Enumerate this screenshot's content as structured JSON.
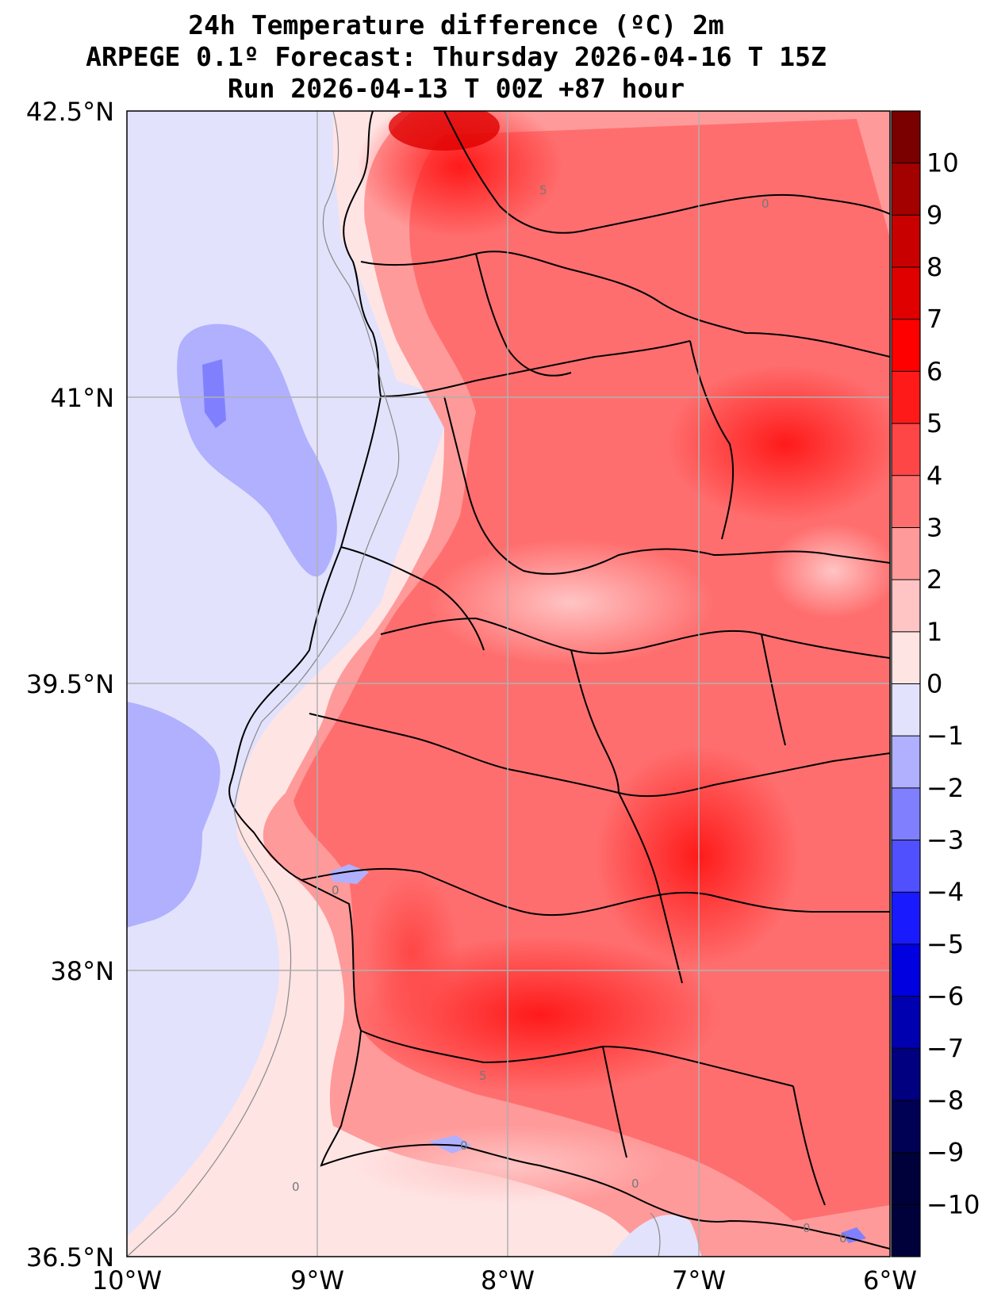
{
  "title": {
    "line1": "24h Temperature difference (ºC) 2m",
    "line2": "ARPEGE 0.1º Forecast: Thursday 2026-04-16 T 15Z",
    "line3": "Run 2026-04-13 T 00Z +87 hour"
  },
  "axes": {
    "lon_ticks": [
      "10°W",
      "9°W",
      "8°W",
      "7°W",
      "6°W"
    ],
    "lat_ticks": [
      "42.5°N",
      "41°N",
      "39.5°N",
      "38°N",
      "36.5°N"
    ],
    "lon_range": [
      -10,
      -6
    ],
    "lat_range": [
      36.5,
      42.5
    ],
    "grid": true
  },
  "colorbar": {
    "labels": [
      "10",
      "9",
      "8",
      "7",
      "6",
      "5",
      "4",
      "3",
      "2",
      "1",
      "0",
      "−1",
      "−2",
      "−3",
      "−4",
      "−5",
      "−6",
      "−7",
      "−8",
      "−9",
      "−10"
    ],
    "colors": [
      "#7a0000",
      "#a30000",
      "#c80000",
      "#e00000",
      "#ff0000",
      "#ff1a1a",
      "#ff4646",
      "#ff6e6e",
      "#ff9a9a",
      "#ffc4c4",
      "#ffe4e4",
      "#e2e2fc",
      "#b0b0ff",
      "#8080ff",
      "#5050ff",
      "#1a1aff",
      "#0000e0",
      "#0000b0",
      "#000080",
      "#000055",
      "#00003a"
    ]
  },
  "contour_labels": [
    "5",
    "0",
    "0",
    "5",
    "0",
    "0",
    "0",
    "0",
    "0"
  ],
  "colors": {
    "sea": "#e2e2fc",
    "land_base": "#ff6e6e",
    "border": "#000000"
  }
}
